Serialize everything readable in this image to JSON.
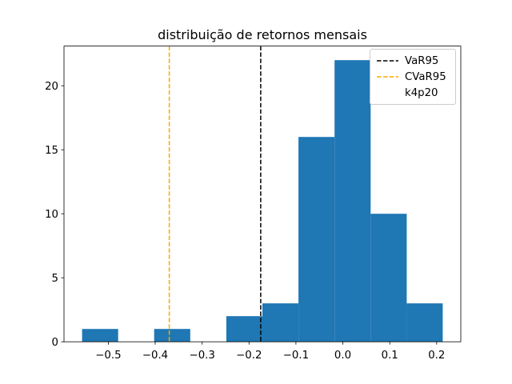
{
  "chart_data": {
    "type": "bar",
    "subtype": "histogram",
    "title": "distribuição de retornos mensais",
    "xlabel": "",
    "ylabel": "",
    "bin_edges": [
      -0.556,
      -0.4791,
      -0.4022,
      -0.3253,
      -0.2484,
      -0.1715,
      -0.0946,
      -0.0177,
      0.0592,
      0.1361,
      0.213
    ],
    "counts": [
      1,
      0,
      1,
      0,
      2,
      3,
      16,
      22,
      10,
      3
    ],
    "bar_color": "#1f77b4",
    "xlim": [
      -0.5945,
      0.2515
    ],
    "ylim": [
      0,
      23.1
    ],
    "grid": false,
    "xticks": {
      "values": [
        -0.5,
        -0.4,
        -0.3,
        -0.2,
        -0.1,
        0.0,
        0.1,
        0.2
      ],
      "labels": [
        "−0.5",
        "−0.4",
        "−0.3",
        "−0.2",
        "−0.1",
        "0.0",
        "0.1",
        "0.2"
      ]
    },
    "yticks": {
      "values": [
        0,
        5,
        10,
        15,
        20
      ],
      "labels": [
        "0",
        "5",
        "10",
        "15",
        "20"
      ]
    },
    "vlines": [
      {
        "name": "VaR95",
        "x": -0.175,
        "color": "#000000",
        "style": "dashed"
      },
      {
        "name": "CVaR95",
        "x": -0.37,
        "color": "#ffa500",
        "style": "dashed"
      }
    ],
    "legend": {
      "position": "upper right",
      "entries": [
        {
          "label": "VaR95",
          "line_color": "#000000",
          "line_style": "dashed"
        },
        {
          "label": "CVaR95",
          "line_color": "#ffa500",
          "line_style": "dashed"
        },
        {
          "label": "k4p20",
          "line_color": null,
          "line_style": "none"
        }
      ]
    },
    "axes": {
      "background": "#ffffff",
      "spine_color": "#000000"
    }
  }
}
